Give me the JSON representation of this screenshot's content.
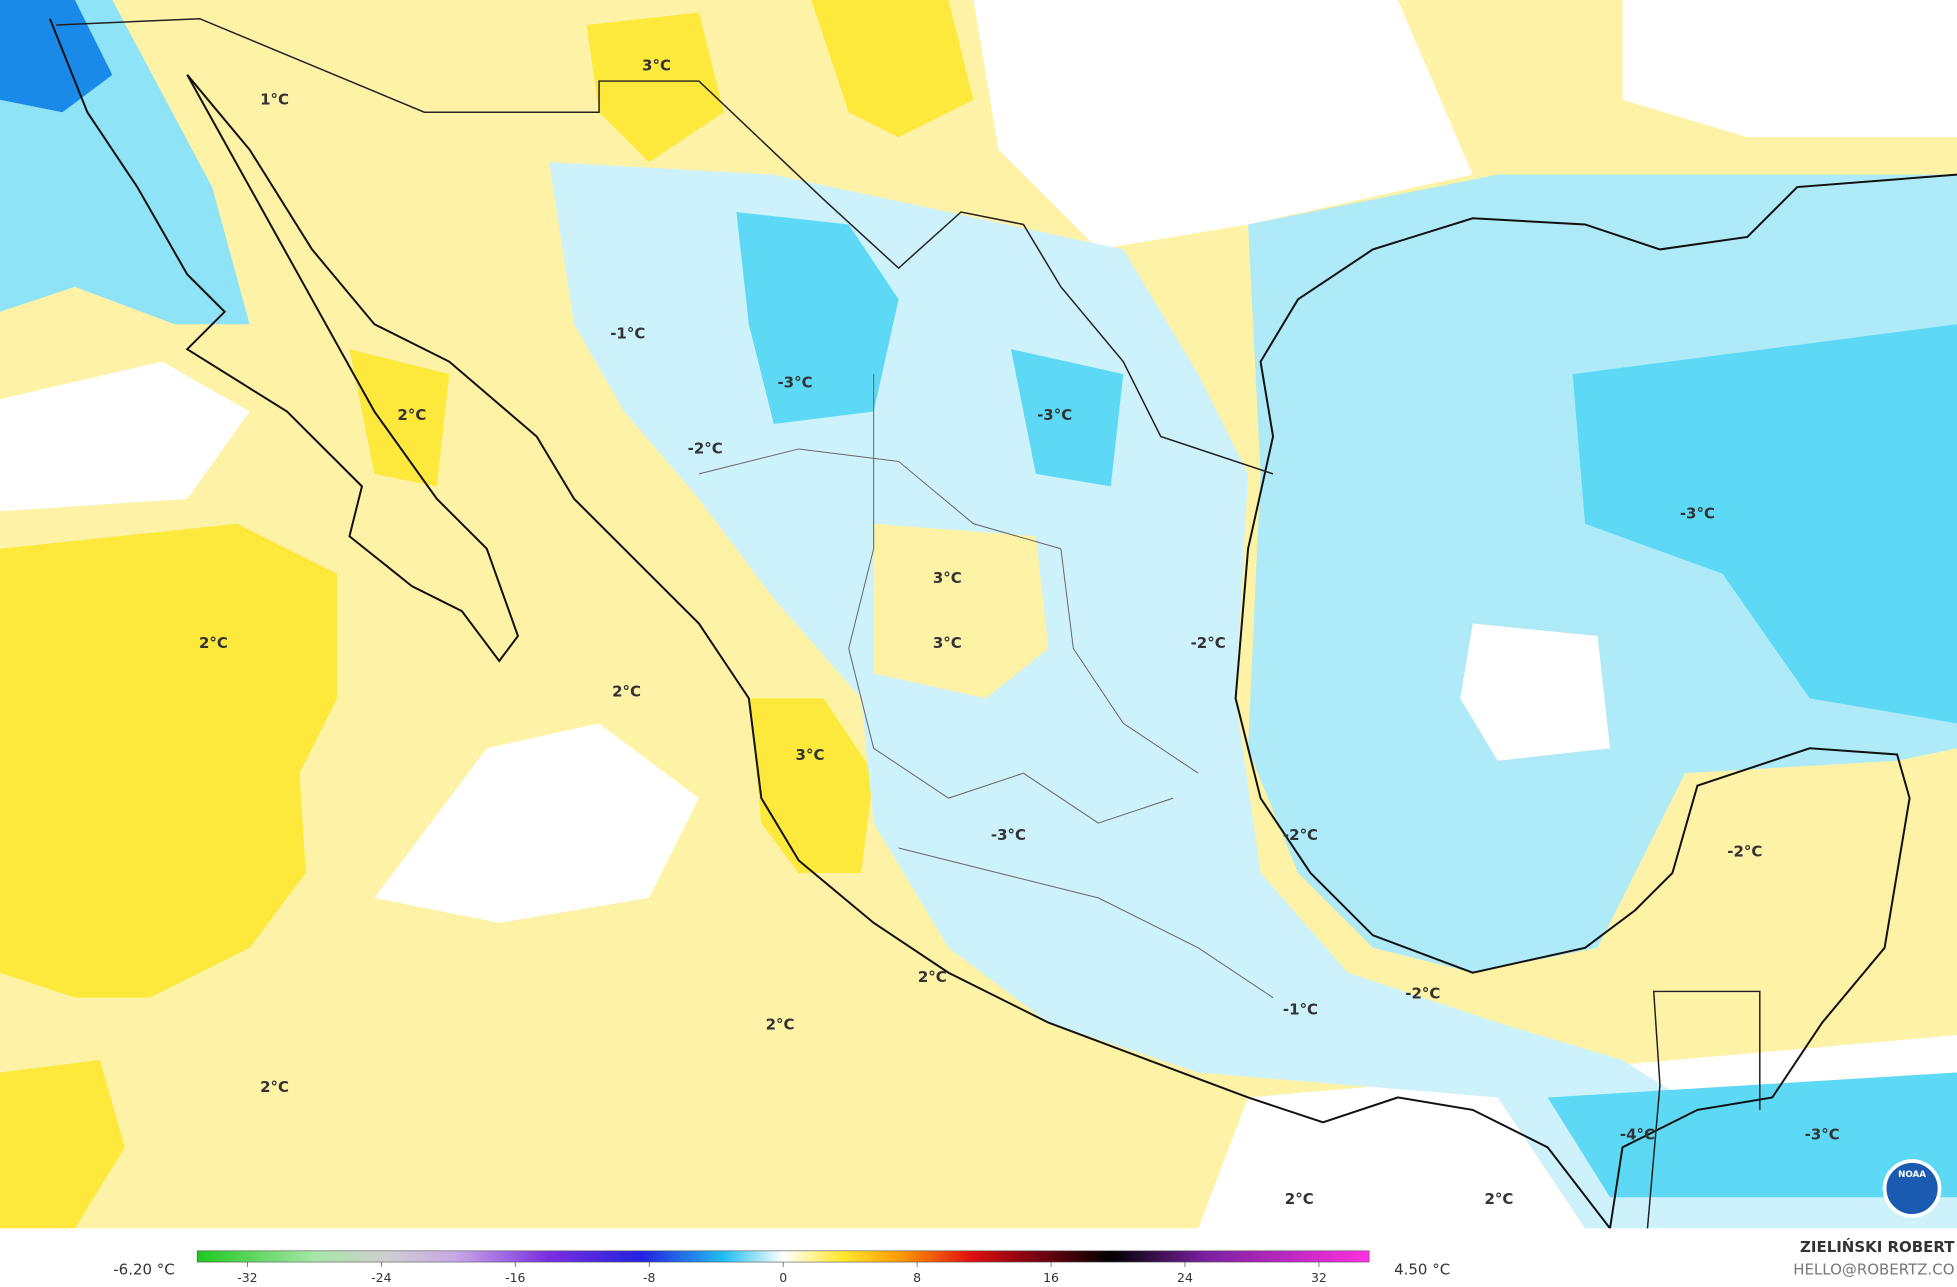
{
  "map": {
    "labels": [
      "1°C",
      "3°C",
      "-1°C",
      "-3°C",
      "-3°C",
      "2°C",
      "-2°C",
      "-3°C",
      "3°C",
      "3°C",
      "-2°C",
      "2°C",
      "2°C",
      "3°C",
      "-3°C",
      "-2°C",
      "-2°C",
      "2°C",
      "-1°C",
      "-2°C",
      "2°C",
      "2°C",
      "-4°C",
      "-3°C",
      "2°C",
      "2°C"
    ],
    "logo": "NOAA"
  },
  "colorbar": {
    "min_label": "-6.20 °C",
    "max_label": "4.50 °C",
    "range": [
      -35,
      35
    ],
    "ticks": [
      -32,
      -24,
      -16,
      -8,
      0,
      8,
      16,
      24,
      32
    ]
  },
  "credit": {
    "author": "ZIELIŃSKI ROBERT",
    "email": "HELLO@ROBERTZ.CO"
  }
}
